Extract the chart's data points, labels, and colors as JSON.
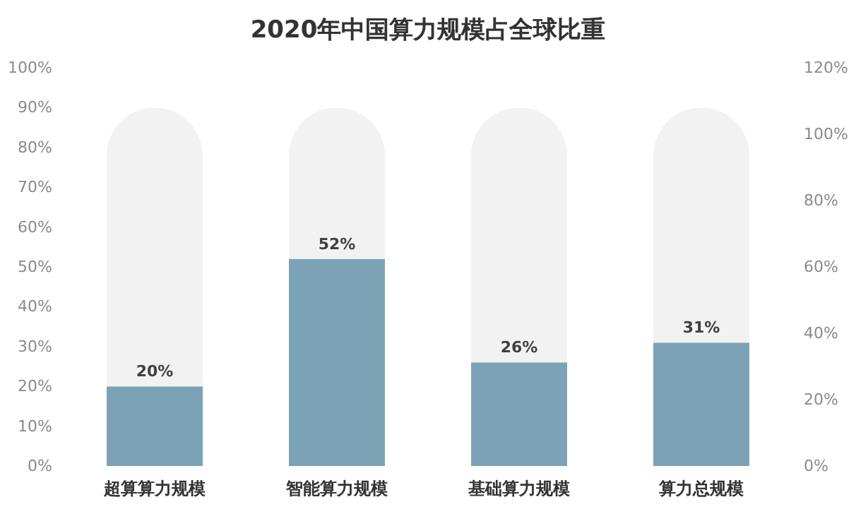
{
  "chart_data": {
    "type": "bar",
    "title": "2020年中国算力规模占全球比重",
    "stacked": true,
    "categories": [
      "超算算力规模",
      "智能算力规模",
      "基础算力规模",
      "算力总规模"
    ],
    "series": [
      {
        "color": "#7ba3b5",
        "values": [
          20,
          52,
          26,
          31
        ],
        "value_labels": [
          "20%",
          "52%",
          "26%",
          "31%"
        ]
      },
      {
        "color": "#f2f2f2",
        "values": [
          70,
          38,
          64,
          59
        ]
      }
    ],
    "ylim": [
      0,
      100
    ],
    "yticks": [
      {
        "value": 0,
        "label": "0%"
      },
      {
        "value": 10,
        "label": "10%"
      },
      {
        "value": 20,
        "label": "20%"
      },
      {
        "value": 30,
        "label": "30%"
      },
      {
        "value": 40,
        "label": "40%"
      },
      {
        "value": 50,
        "label": "50%"
      },
      {
        "value": 60,
        "label": "60%"
      },
      {
        "value": 70,
        "label": "70%"
      },
      {
        "value": 80,
        "label": "80%"
      },
      {
        "value": 90,
        "label": "90%"
      },
      {
        "value": 100,
        "label": "100%"
      }
    ],
    "y2lim": [
      0,
      120
    ],
    "y2ticks": [
      {
        "value": 0,
        "label": "0%"
      },
      {
        "value": 20,
        "label": "20%"
      },
      {
        "value": 40,
        "label": "40%"
      },
      {
        "value": 60,
        "label": "60%"
      },
      {
        "value": 80,
        "label": "80%"
      },
      {
        "value": 100,
        "label": "100%"
      },
      {
        "value": 120,
        "label": "120%"
      }
    ]
  }
}
